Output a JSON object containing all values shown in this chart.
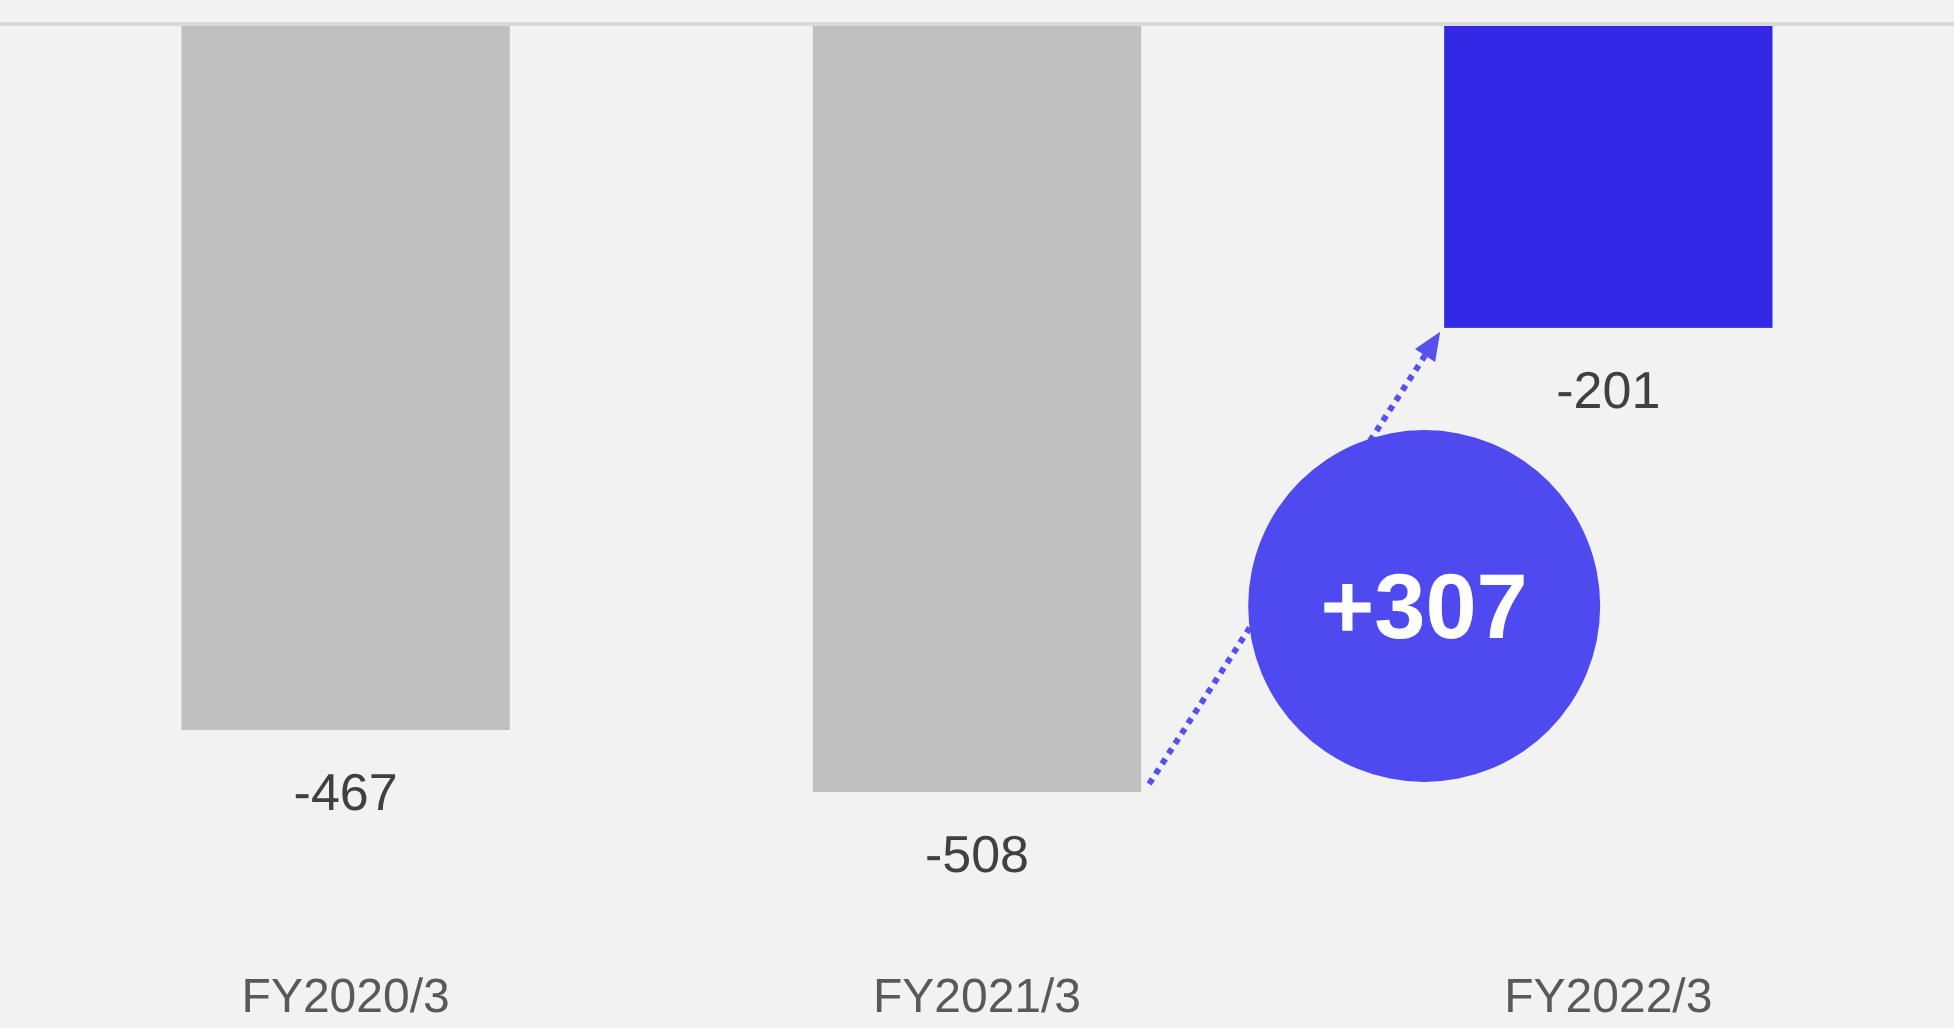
{
  "chart_data": {
    "type": "bar",
    "categories": [
      "FY2020/3",
      "FY2021/3",
      "FY2022/3"
    ],
    "values": [
      -467,
      -508,
      -201
    ],
    "colors": [
      "#c0c0c0",
      "#c0c0c0",
      "#3228e6"
    ],
    "data_labels": true,
    "annotations": [
      "+307"
    ]
  }
}
